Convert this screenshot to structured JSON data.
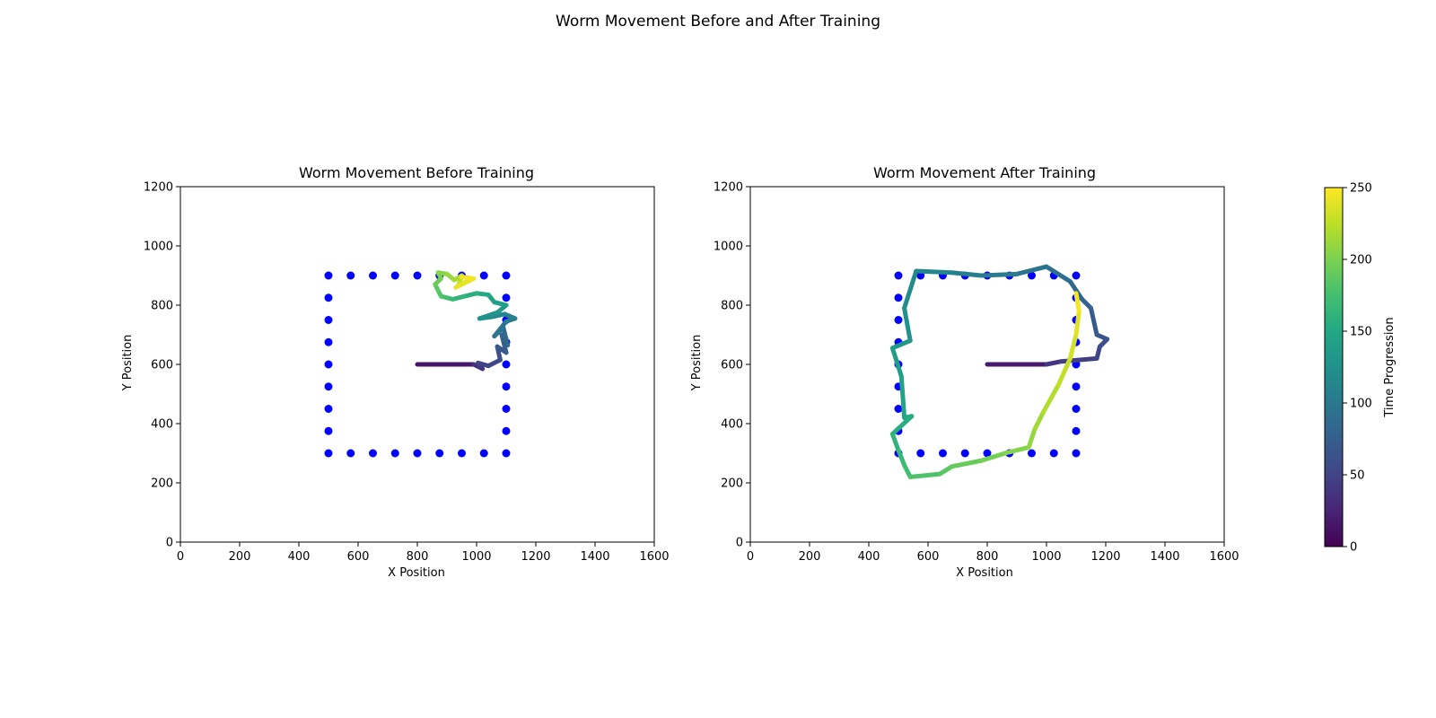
{
  "figure": {
    "suptitle": "Worm Movement Before and After Training"
  },
  "colors": {
    "marker": "#0000ff",
    "axes": "#000000"
  },
  "chart_data": [
    {
      "type": "line",
      "title": "Worm Movement Before Training",
      "xlabel": "X Position",
      "ylabel": "Y Position",
      "xlim": [
        0,
        1600
      ],
      "ylim": [
        0,
        1200
      ],
      "xticks": [
        0,
        200,
        400,
        600,
        800,
        1000,
        1200,
        1400,
        1600
      ],
      "yticks": [
        0,
        200,
        400,
        600,
        800,
        1000,
        1200
      ],
      "grid": false,
      "colormap": "viridis",
      "markers": {
        "name": "square-perimeter-points",
        "x": [
          500,
          575,
          650,
          725,
          800,
          875,
          950,
          1025,
          1100,
          1100,
          1100,
          1100,
          1100,
          1100,
          1100,
          1100,
          1100,
          1025,
          950,
          875,
          800,
          725,
          650,
          575,
          500,
          500,
          500,
          500,
          500,
          500,
          500,
          500
        ],
        "y": [
          900,
          900,
          900,
          900,
          900,
          900,
          900,
          900,
          900,
          825,
          750,
          675,
          600,
          525,
          450,
          375,
          300,
          300,
          300,
          300,
          300,
          300,
          300,
          300,
          300,
          375,
          450,
          525,
          600,
          675,
          750,
          825
        ]
      },
      "path": {
        "t": [
          0,
          30,
          38,
          45,
          52,
          58,
          64,
          70,
          76,
          82,
          88,
          94,
          100,
          106,
          112,
          118,
          124,
          130,
          136,
          142,
          148,
          154,
          160,
          166,
          172,
          178,
          184,
          190,
          196,
          202,
          208,
          214,
          220,
          226,
          232,
          238,
          244,
          250
        ],
        "x": [
          800,
          990,
          1020,
          1005,
          1040,
          1080,
          1070,
          1100,
          1085,
          1105,
          1090,
          1060,
          1100,
          1130,
          1095,
          1050,
          1010,
          1070,
          1100,
          1060,
          1040,
          1000,
          960,
          920,
          900,
          880,
          870,
          860,
          880,
          870,
          900,
          925,
          950,
          940,
          970,
          930,
          990,
          950
        ],
        "y": [
          600,
          600,
          585,
          605,
          595,
          615,
          660,
          640,
          700,
          665,
          725,
          695,
          745,
          755,
          770,
          760,
          755,
          775,
          800,
          810,
          835,
          840,
          830,
          820,
          825,
          830,
          850,
          870,
          890,
          910,
          905,
          885,
          900,
          870,
          880,
          860,
          890,
          895
        ]
      }
    },
    {
      "type": "line",
      "title": "Worm Movement After Training",
      "xlabel": "X Position",
      "ylabel": "Y Position",
      "xlim": [
        0,
        1600
      ],
      "ylim": [
        0,
        1200
      ],
      "xticks": [
        0,
        200,
        400,
        600,
        800,
        1000,
        1200,
        1400,
        1600
      ],
      "yticks": [
        0,
        200,
        400,
        600,
        800,
        1000,
        1200
      ],
      "grid": false,
      "colormap": "viridis",
      "markers": {
        "name": "square-perimeter-points",
        "x": [
          500,
          575,
          650,
          725,
          800,
          875,
          950,
          1025,
          1100,
          1100,
          1100,
          1100,
          1100,
          1100,
          1100,
          1100,
          1100,
          1025,
          950,
          875,
          800,
          725,
          650,
          575,
          500,
          500,
          500,
          500,
          500,
          500,
          500,
          500
        ],
        "y": [
          900,
          900,
          900,
          900,
          900,
          900,
          900,
          900,
          900,
          825,
          750,
          675,
          600,
          525,
          450,
          375,
          300,
          300,
          300,
          300,
          300,
          300,
          300,
          300,
          300,
          375,
          450,
          525,
          600,
          675,
          750,
          825
        ]
      },
      "path": {
        "t": [
          0,
          35,
          42,
          50,
          56,
          62,
          68,
          74,
          80,
          86,
          92,
          98,
          104,
          110,
          116,
          122,
          128,
          134,
          140,
          146,
          152,
          158,
          164,
          170,
          176,
          182,
          188,
          194,
          200,
          206,
          212,
          218,
          224,
          230,
          236,
          242,
          250
        ],
        "x": [
          800,
          1000,
          1050,
          1170,
          1180,
          1205,
          1170,
          1150,
          1120,
          1080,
          1000,
          900,
          780,
          680,
          560,
          520,
          540,
          480,
          510,
          520,
          545,
          480,
          500,
          520,
          540,
          640,
          680,
          780,
          860,
          940,
          960,
          990,
          1040,
          1080,
          1100,
          1110,
          1100
        ],
        "y": [
          600,
          600,
          610,
          620,
          660,
          685,
          700,
          790,
          820,
          880,
          930,
          905,
          900,
          910,
          915,
          790,
          680,
          655,
          560,
          420,
          425,
          365,
          310,
          260,
          220,
          230,
          255,
          275,
          300,
          320,
          380,
          440,
          530,
          620,
          700,
          780,
          840
        ]
      }
    }
  ],
  "colorbar": {
    "label": "Time Progression",
    "ticks": [
      0,
      50,
      100,
      150,
      200,
      250
    ],
    "range": [
      0,
      250
    ],
    "colormap": "viridis"
  }
}
